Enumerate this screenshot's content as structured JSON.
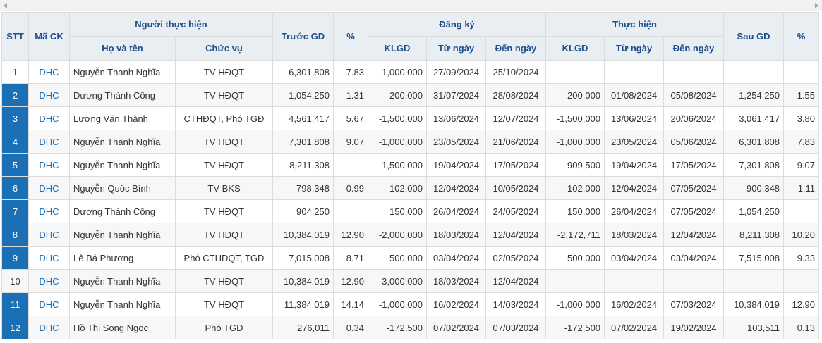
{
  "table": {
    "header": {
      "stt": "STT",
      "code": "Mã CK",
      "person": "Người thực hiện",
      "name": "Họ và tên",
      "position": "Chức vụ",
      "before": "Trước GD",
      "before_pct": "%",
      "registered": "Đăng ký",
      "reg_volume": "KLGD",
      "reg_from": "Từ ngày",
      "reg_to": "Đến ngày",
      "executed": "Thực hiện",
      "exe_volume": "KLGD",
      "exe_from": "Từ ngày",
      "exe_to": "Đến ngày",
      "after": "Sau GD",
      "after_pct": "%"
    },
    "rows": [
      {
        "highlight": false,
        "cells": [
          "1",
          "DHC",
          "Nguyễn Thanh Nghĩa",
          "TV HĐQT",
          "6,301,808",
          "7.83",
          "-1,000,000",
          "27/09/2024",
          "25/10/2024",
          null,
          null,
          null,
          null,
          null
        ]
      },
      {
        "highlight": true,
        "cells": [
          "2",
          "DHC",
          "Dương Thành Công",
          "TV HĐQT",
          "1,054,250",
          "1.31",
          "200,000",
          "31/07/2024",
          "28/08/2024",
          "200,000",
          "01/08/2024",
          "05/08/2024",
          "1,254,250",
          "1.55"
        ]
      },
      {
        "highlight": true,
        "cells": [
          "3",
          "DHC",
          "Lương Văn Thành",
          "CTHĐQT, Phó TGĐ",
          "4,561,417",
          "5.67",
          "-1,500,000",
          "13/06/2024",
          "12/07/2024",
          "-1,500,000",
          "13/06/2024",
          "20/06/2024",
          "3,061,417",
          "3.80"
        ]
      },
      {
        "highlight": true,
        "cells": [
          "4",
          "DHC",
          "Nguyễn Thanh Nghĩa",
          "TV HĐQT",
          "7,301,808",
          "9.07",
          "-1,000,000",
          "23/05/2024",
          "21/06/2024",
          "-1,000,000",
          "23/05/2024",
          "05/06/2024",
          "6,301,808",
          "7.83"
        ]
      },
      {
        "highlight": true,
        "cells": [
          "5",
          "DHC",
          "Nguyễn Thanh Nghĩa",
          "TV HĐQT",
          "8,211,308",
          null,
          "-1,500,000",
          "19/04/2024",
          "17/05/2024",
          "-909,500",
          "19/04/2024",
          "17/05/2024",
          "7,301,808",
          "9.07"
        ]
      },
      {
        "highlight": true,
        "cells": [
          "6",
          "DHC",
          "Nguyễn Quốc Bình",
          "TV BKS",
          "798,348",
          "0.99",
          "102,000",
          "12/04/2024",
          "10/05/2024",
          "102,000",
          "12/04/2024",
          "07/05/2024",
          "900,348",
          "1.11"
        ]
      },
      {
        "highlight": true,
        "cells": [
          "7",
          "DHC",
          "Dương Thành Công",
          "TV HĐQT",
          "904,250",
          null,
          "150,000",
          "26/04/2024",
          "24/05/2024",
          "150,000",
          "26/04/2024",
          "07/05/2024",
          "1,054,250",
          null
        ]
      },
      {
        "highlight": true,
        "cells": [
          "8",
          "DHC",
          "Nguyễn Thanh Nghĩa",
          "TV HĐQT",
          "10,384,019",
          "12.90",
          "-2,000,000",
          "18/03/2024",
          "12/04/2024",
          "-2,172,711",
          "18/03/2024",
          "12/04/2024",
          "8,211,308",
          "10.20"
        ]
      },
      {
        "highlight": true,
        "cells": [
          "9",
          "DHC",
          "Lê Bá Phương",
          "Phó CTHĐQT, TGĐ",
          "7,015,008",
          "8.71",
          "500,000",
          "03/04/2024",
          "02/05/2024",
          "500,000",
          "03/04/2024",
          "03/04/2024",
          "7,515,008",
          "9.33"
        ]
      },
      {
        "highlight": false,
        "cells": [
          "10",
          "DHC",
          "Nguyễn Thanh Nghĩa",
          "TV HĐQT",
          "10,384,019",
          "12.90",
          "-3,000,000",
          "18/03/2024",
          "12/04/2024",
          null,
          null,
          null,
          null,
          null
        ]
      },
      {
        "highlight": true,
        "cells": [
          "11",
          "DHC",
          "Nguyễn Thanh Nghĩa",
          "TV HĐQT",
          "11,384,019",
          "14.14",
          "-1,000,000",
          "16/02/2024",
          "14/03/2024",
          "-1,000,000",
          "16/02/2024",
          "07/03/2024",
          "10,384,019",
          "12.90"
        ]
      },
      {
        "highlight": true,
        "cells": [
          "12",
          "DHC",
          "Hồ Thị Song Ngọc",
          "Phó TGĐ",
          "276,011",
          "0.34",
          "-172,500",
          "07/02/2024",
          "07/03/2024",
          "-172,500",
          "07/02/2024",
          "19/02/2024",
          "103,511",
          "0.13"
        ]
      }
    ]
  }
}
